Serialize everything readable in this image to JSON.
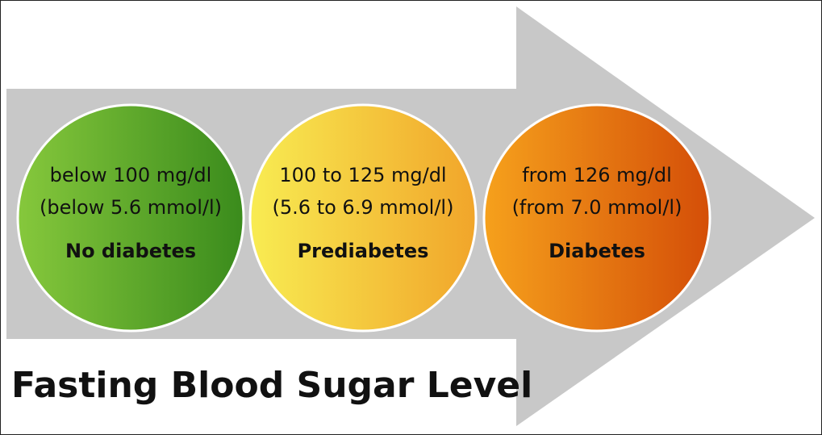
{
  "title": "Fasting Blood Sugar Level",
  "stages": [
    {
      "range": "below 100 mg/dl",
      "range_mmol": "(below 5.6 mmol/l)",
      "label": "No diabetes"
    },
    {
      "range": "100 to 125 mg/dl",
      "range_mmol": "(5.6 to 6.9 mmol/l)",
      "label": "Prediabetes"
    },
    {
      "range": "from 126 mg/dl",
      "range_mmol": "(from 7.0 mmol/l)",
      "label": "Diabetes"
    }
  ]
}
